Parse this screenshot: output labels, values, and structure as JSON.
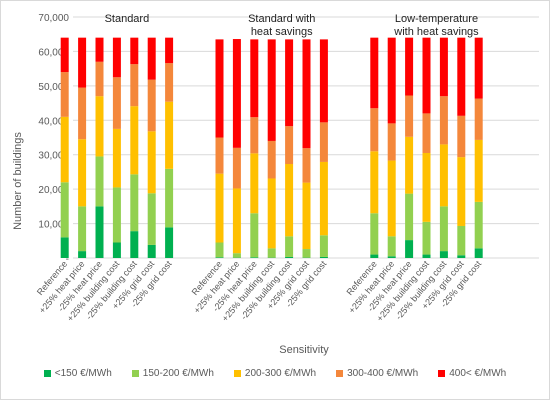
{
  "chart_data": {
    "type": "bar",
    "stacked": true,
    "ylabel": "Number of buildings",
    "xlabel": "Sensitivity",
    "ylim": [
      0,
      70000
    ],
    "yticks": [
      {
        "value": 0,
        "label": "-"
      },
      {
        "value": 10000,
        "label": "10,000"
      },
      {
        "value": 20000,
        "label": "20,000"
      },
      {
        "value": 30000,
        "label": "30,000"
      },
      {
        "value": 40000,
        "label": "40,000"
      },
      {
        "value": 50000,
        "label": "50,000"
      },
      {
        "value": 60000,
        "label": "60,000"
      },
      {
        "value": 70000,
        "label": "70,000"
      }
    ],
    "grid": true,
    "legend_position": "bottom",
    "groups": [
      {
        "label": "Standard",
        "label_lines": [
          "Standard"
        ]
      },
      {
        "label": "Standard with heat savings",
        "label_lines": [
          "Standard with",
          "heat savings"
        ]
      },
      {
        "label": "Low-temperature with heat savings",
        "label_lines": [
          "Low-temperature",
          "with heat savings"
        ]
      }
    ],
    "categories": [
      "Reference",
      "+25% heat price",
      "-25% heat price",
      "+25% building cost",
      "-25% building cost",
      "+25% grid cost",
      "-25% grid cost"
    ],
    "series": [
      {
        "name": "<150 €/MWh",
        "color": "#00b050",
        "values": [
          [
            6000,
            2000,
            15000,
            4500,
            7800,
            3800,
            8900
          ],
          [
            200,
            100,
            200,
            100,
            300,
            100,
            300
          ],
          [
            1000,
            500,
            5200,
            1000,
            2000,
            800,
            2800
          ]
        ]
      },
      {
        "name": "150-200 €/MWh",
        "color": "#92d050",
        "values": [
          [
            16000,
            13000,
            14500,
            16000,
            16500,
            15000,
            17000
          ],
          [
            4300,
            1300,
            12800,
            2700,
            6000,
            2500,
            6300
          ],
          [
            12000,
            5800,
            13500,
            9500,
            13000,
            8500,
            13500
          ]
        ]
      },
      {
        "name": "200-300 €/MWh",
        "color": "#ffc000",
        "values": [
          [
            19000,
            19500,
            17500,
            17000,
            19800,
            18000,
            19500
          ],
          [
            20000,
            18800,
            17400,
            20300,
            21000,
            19300,
            21300
          ],
          [
            18000,
            22000,
            16500,
            20000,
            18000,
            20000,
            18000
          ]
        ]
      },
      {
        "name": "300-400 €/MWh",
        "color": "#f4873b",
        "values": [
          [
            13000,
            15000,
            10000,
            15000,
            12200,
            15000,
            11200
          ],
          [
            10500,
            11800,
            10500,
            10900,
            11000,
            10000,
            11500
          ],
          [
            12500,
            10800,
            12000,
            11500,
            14000,
            12000,
            12000
          ]
        ]
      },
      {
        "name": "400< €/MWh",
        "color": "#ff0000",
        "values": [
          [
            10000,
            14500,
            7000,
            11500,
            7700,
            12200,
            7400
          ],
          [
            28500,
            31600,
            22600,
            29500,
            25200,
            31600,
            24100
          ],
          [
            20500,
            24900,
            16800,
            22000,
            17000,
            22700,
            17700
          ]
        ]
      }
    ]
  }
}
